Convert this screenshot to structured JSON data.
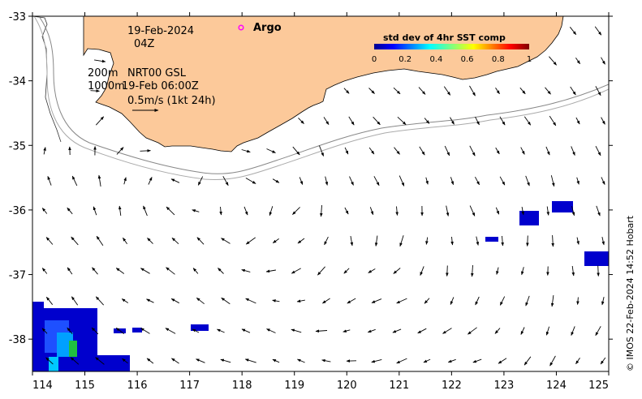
{
  "map": {
    "lon_range": [
      114,
      125
    ],
    "lat_range": [
      -38.5,
      -33
    ],
    "x_ticks": [
      "114",
      "115",
      "116",
      "117",
      "118",
      "119",
      "120",
      "121",
      "122",
      "123",
      "124",
      "125"
    ],
    "y_ticks": [
      "-33",
      "-34",
      "-35",
      "-36",
      "-37",
      "-38"
    ],
    "land_color": "#fcc99a",
    "shelf_contours": [
      "200m",
      "1000m"
    ]
  },
  "annotations": {
    "date": "19-Feb-2024",
    "hour": "04Z",
    "line1_left": "200m",
    "line1_right": "NRT00 GSL",
    "line2_left": "1000m",
    "line2_right": "19-Feb 06:00Z",
    "scale": "0.5m/s (1kt 24h)"
  },
  "argo": {
    "label": "Argo",
    "marker_color": "#ff00ff"
  },
  "colorbar": {
    "title": "std dev of 4hr SST comp",
    "ticks": [
      "0",
      "0.2",
      "0.4",
      "0.6",
      "0.8",
      "1"
    ],
    "colormap": "jet"
  },
  "credit": "© IMOS 22-Feb-2024 14:52 Hobart"
}
